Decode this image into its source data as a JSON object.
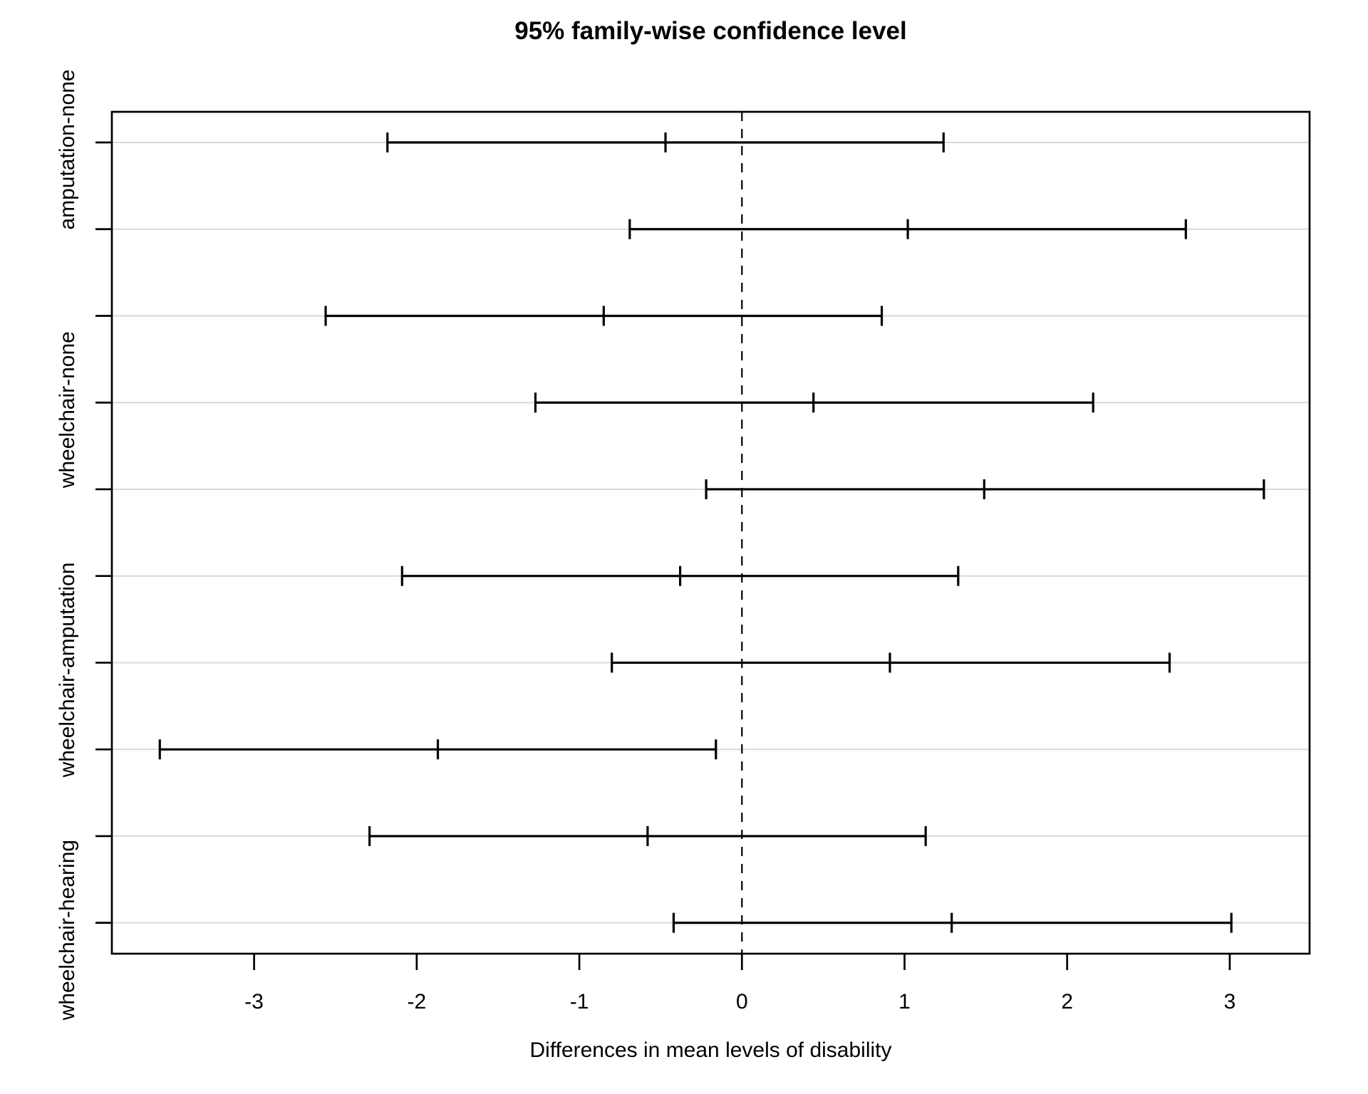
{
  "chart_data": {
    "type": "scatter",
    "variant": "tukey-hsd-horizontal-confidence-intervals",
    "title": "95% family-wise confidence level",
    "xlabel": "Differences in mean levels of disability",
    "xlim": [
      -3.87,
      3.49
    ],
    "x_ticks": [
      -3,
      -2,
      -1,
      0,
      1,
      2,
      3
    ],
    "zero_line": {
      "x": 0,
      "style": "dashed",
      "color": "#000000"
    },
    "grid": {
      "horizontal": true,
      "color": "#d9d9d9"
    },
    "legend": "none",
    "rows_top_to_bottom": [
      {
        "label": "amputation-none",
        "label_shown": true,
        "diff": -0.47,
        "lwr": -2.18,
        "upr": 1.24
      },
      {
        "label": "",
        "label_shown": false,
        "diff": 1.02,
        "lwr": -0.69,
        "upr": 2.73
      },
      {
        "label": "",
        "label_shown": false,
        "diff": -0.85,
        "lwr": -2.56,
        "upr": 0.86
      },
      {
        "label": "wheelchair-none",
        "label_shown": true,
        "diff": 0.44,
        "lwr": -1.27,
        "upr": 2.16
      },
      {
        "label": "",
        "label_shown": false,
        "diff": 1.49,
        "lwr": -0.22,
        "upr": 3.21
      },
      {
        "label": "",
        "label_shown": false,
        "diff": -0.38,
        "lwr": -2.09,
        "upr": 1.33
      },
      {
        "label": "wheelchair-amputation",
        "label_shown": true,
        "diff": 0.91,
        "lwr": -0.8,
        "upr": 2.63
      },
      {
        "label": "",
        "label_shown": false,
        "diff": -1.87,
        "lwr": -3.58,
        "upr": -0.16
      },
      {
        "label": "",
        "label_shown": false,
        "diff": -0.58,
        "lwr": -2.29,
        "upr": 1.13
      },
      {
        "label": "wheelchair-hearing",
        "label_shown": true,
        "diff": 1.29,
        "lwr": -0.42,
        "upr": 3.01
      }
    ],
    "colors": {
      "foreground": "#000000",
      "background": "#ffffff",
      "gridline": "#d9d9d9"
    }
  }
}
